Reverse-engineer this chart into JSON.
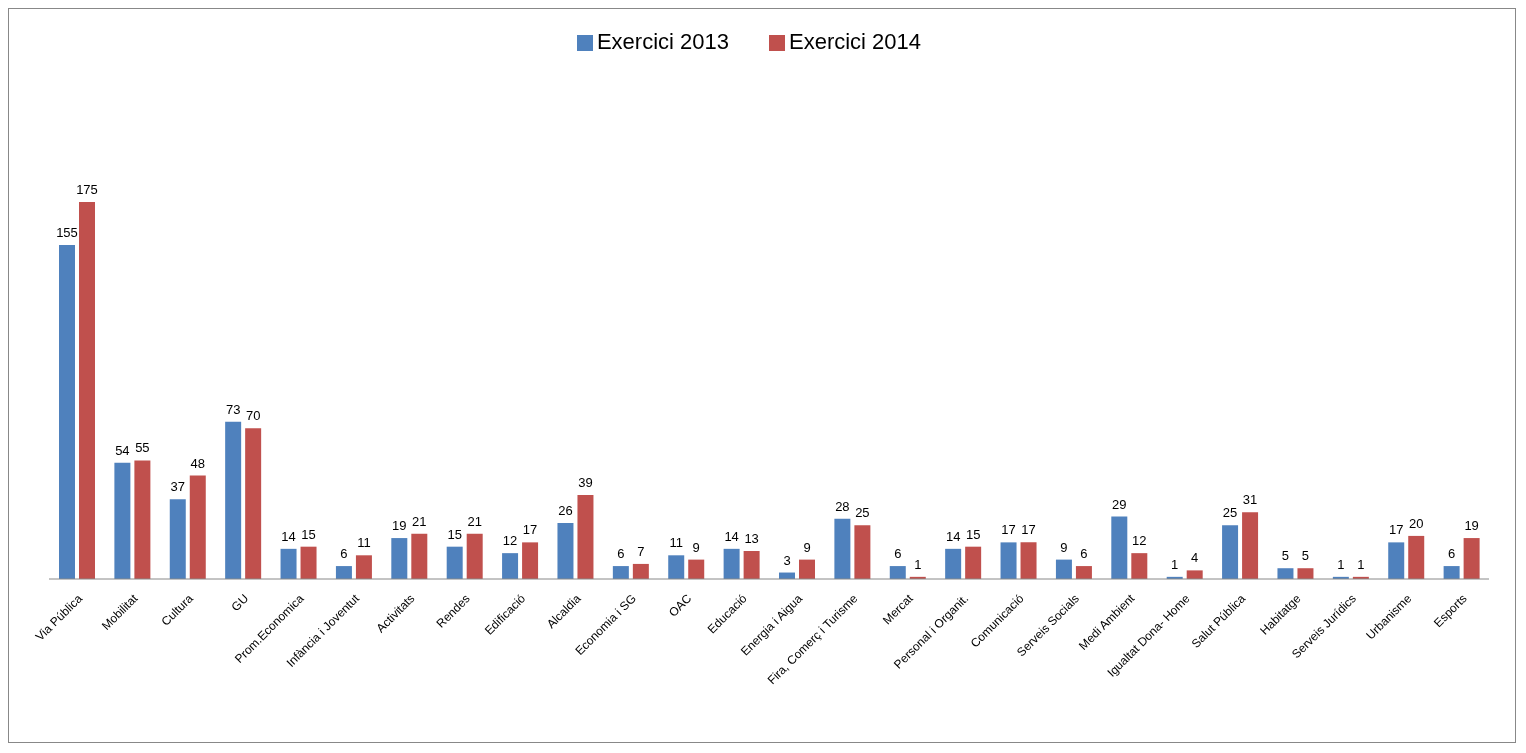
{
  "chart_data": {
    "type": "bar",
    "categories": [
      "Via Pública",
      "Mobilitat",
      "Cultura",
      "GU",
      "Prom.Economica",
      "Infància i Joventut",
      "Activitats",
      "Rendes",
      "Edificació",
      "Alcaldia",
      "Economia i SG",
      "OAC",
      "Educació",
      "Energia i Aigua",
      "Fira, Comerç i Turisme",
      "Mercat",
      "Personal i Organit.",
      "Comunicació",
      "Serveis Socials",
      "Medi Ambient",
      "Igualtat Dona- Home",
      "Salut Pública",
      "Habitatge",
      "Serveis Jurídics",
      "Urbanisme",
      "Esports"
    ],
    "series": [
      {
        "name": "Exercici 2013",
        "color": "#4f81bd",
        "values": [
          155,
          54,
          37,
          73,
          14,
          6,
          19,
          15,
          12,
          26,
          6,
          11,
          14,
          3,
          28,
          6,
          14,
          17,
          9,
          29,
          1,
          25,
          5,
          1,
          17,
          6
        ]
      },
      {
        "name": "Exercici 2014",
        "color": "#c0504d",
        "values": [
          175,
          55,
          48,
          70,
          15,
          11,
          21,
          21,
          17,
          39,
          7,
          9,
          13,
          9,
          25,
          1,
          15,
          17,
          6,
          12,
          4,
          31,
          5,
          1,
          20,
          19
        ]
      }
    ],
    "data_labels": true,
    "legend": "top",
    "grid": false
  }
}
